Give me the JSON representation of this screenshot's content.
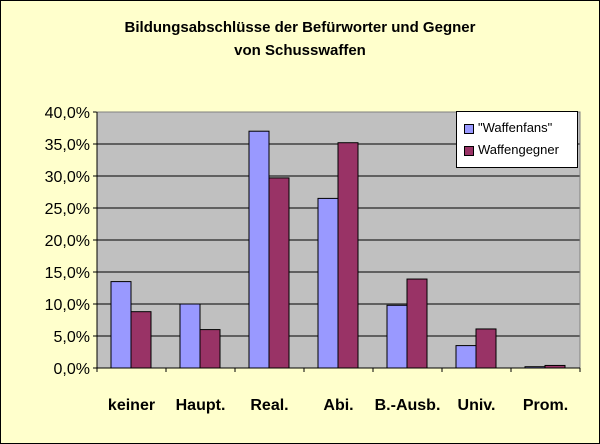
{
  "chart_data": {
    "type": "bar",
    "title_lines": [
      "Bildungsabschlüsse der Befürworter und Gegner",
      "von Schusswaffen"
    ],
    "categories": [
      "keiner",
      "Haupt.",
      "Real.",
      "Abi.",
      "B.-Ausb.",
      "Univ.",
      "Prom."
    ],
    "series": [
      {
        "name": "\"Waffenfans\"",
        "color": "#9999ff",
        "values": [
          13.5,
          10.0,
          37.0,
          26.5,
          9.8,
          3.5,
          0.2
        ]
      },
      {
        "name": "Waffengegner",
        "color": "#993366",
        "values": [
          8.8,
          6.0,
          29.7,
          35.2,
          13.9,
          6.1,
          0.4
        ]
      }
    ],
    "yticks": [
      "0,0%",
      "5,0%",
      "10,0%",
      "15,0%",
      "20,0%",
      "25,0%",
      "30,0%",
      "35,0%",
      "40,0%"
    ],
    "ylim": [
      0,
      40
    ],
    "ytick_step": 5,
    "grid": true,
    "legend_position": "top-right",
    "plot_background": "#c0c0c0",
    "page_background": "#ffffcc"
  }
}
